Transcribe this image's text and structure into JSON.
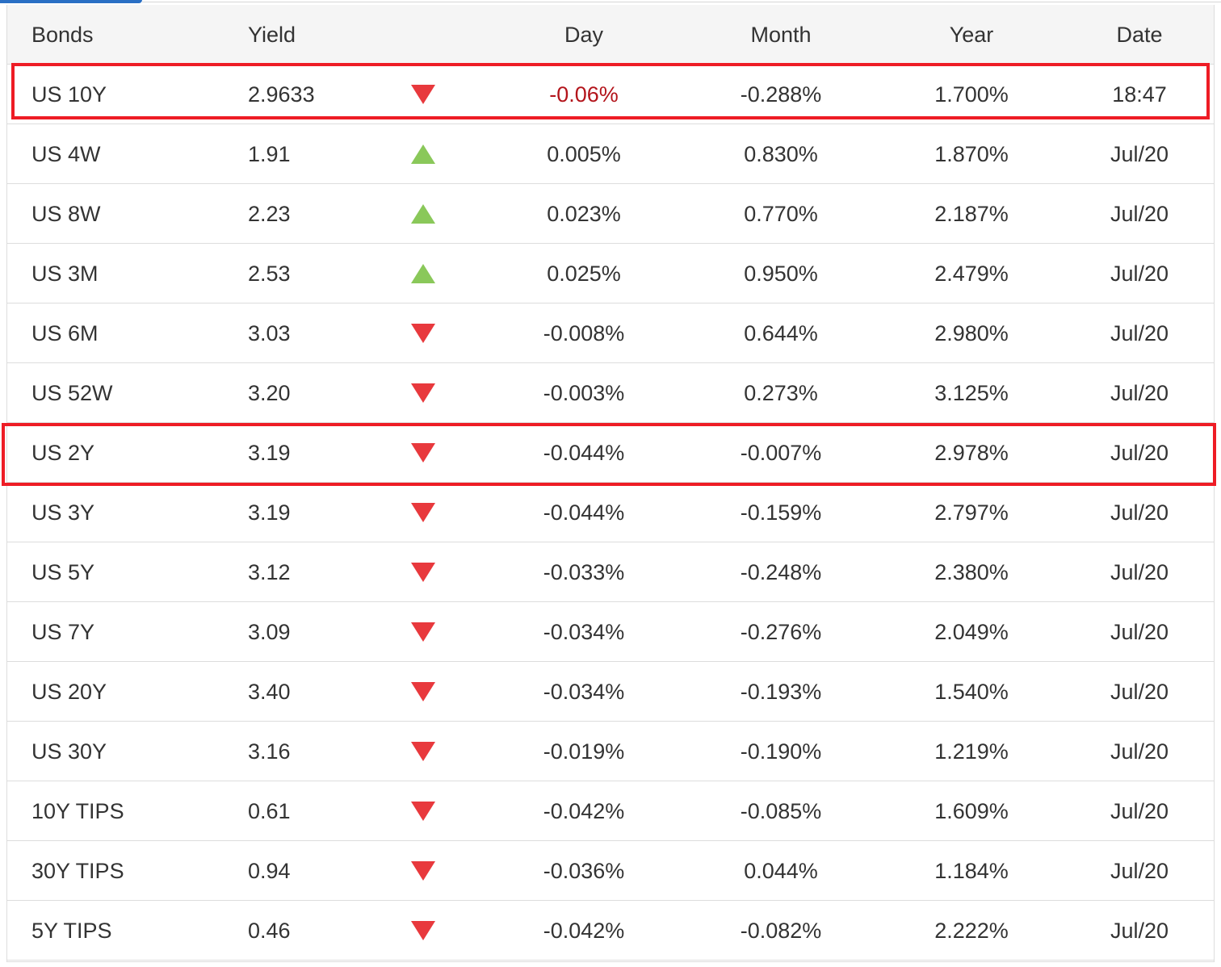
{
  "table": {
    "columns": [
      "Bonds",
      "Yield",
      "",
      "Day",
      "Month",
      "Year",
      "Date"
    ],
    "rows": [
      {
        "name": "US 10Y",
        "yield": "2.9633",
        "direction": "down",
        "day": "-0.06%",
        "month": "-0.288%",
        "year": "1.700%",
        "date": "18:47",
        "day_color": "#b3141b"
      },
      {
        "name": "US 4W",
        "yield": "1.91",
        "direction": "up",
        "day": "0.005%",
        "month": "0.830%",
        "year": "1.870%",
        "date": "Jul/20"
      },
      {
        "name": "US 8W",
        "yield": "2.23",
        "direction": "up",
        "day": "0.023%",
        "month": "0.770%",
        "year": "2.187%",
        "date": "Jul/20"
      },
      {
        "name": "US 3M",
        "yield": "2.53",
        "direction": "up",
        "day": "0.025%",
        "month": "0.950%",
        "year": "2.479%",
        "date": "Jul/20"
      },
      {
        "name": "US 6M",
        "yield": "3.03",
        "direction": "down",
        "day": "-0.008%",
        "month": "0.644%",
        "year": "2.980%",
        "date": "Jul/20"
      },
      {
        "name": "US 52W",
        "yield": "3.20",
        "direction": "down",
        "day": "-0.003%",
        "month": "0.273%",
        "year": "3.125%",
        "date": "Jul/20"
      },
      {
        "name": "US 2Y",
        "yield": "3.19",
        "direction": "down",
        "day": "-0.044%",
        "month": "-0.007%",
        "year": "2.978%",
        "date": "Jul/20"
      },
      {
        "name": "US 3Y",
        "yield": "3.19",
        "direction": "down",
        "day": "-0.044%",
        "month": "-0.159%",
        "year": "2.797%",
        "date": "Jul/20"
      },
      {
        "name": "US 5Y",
        "yield": "3.12",
        "direction": "down",
        "day": "-0.033%",
        "month": "-0.248%",
        "year": "2.380%",
        "date": "Jul/20"
      },
      {
        "name": "US 7Y",
        "yield": "3.09",
        "direction": "down",
        "day": "-0.034%",
        "month": "-0.276%",
        "year": "2.049%",
        "date": "Jul/20"
      },
      {
        "name": "US 20Y",
        "yield": "3.40",
        "direction": "down",
        "day": "-0.034%",
        "month": "-0.193%",
        "year": "1.540%",
        "date": "Jul/20"
      },
      {
        "name": "US 30Y",
        "yield": "3.16",
        "direction": "down",
        "day": "-0.019%",
        "month": "-0.190%",
        "year": "1.219%",
        "date": "Jul/20"
      },
      {
        "name": "10Y TIPS",
        "yield": "0.61",
        "direction": "down",
        "day": "-0.042%",
        "month": "-0.085%",
        "year": "1.609%",
        "date": "Jul/20"
      },
      {
        "name": "30Y TIPS",
        "yield": "0.94",
        "direction": "down",
        "day": "-0.036%",
        "month": "0.044%",
        "year": "1.184%",
        "date": "Jul/20"
      },
      {
        "name": "5Y TIPS",
        "yield": "0.46",
        "direction": "down",
        "day": "-0.042%",
        "month": "-0.082%",
        "year": "2.222%",
        "date": "Jul/20"
      }
    ],
    "highlighted_rows": [
      "US 10Y",
      "US 2Y"
    ]
  },
  "colors": {
    "up_arrow": "#8ac85a",
    "down_arrow": "#e8393d",
    "highlight_border": "#ee1c25",
    "active_tab": "#2a6fc4"
  },
  "icons": {
    "up": "triangle-up-icon",
    "down": "triangle-down-icon"
  }
}
